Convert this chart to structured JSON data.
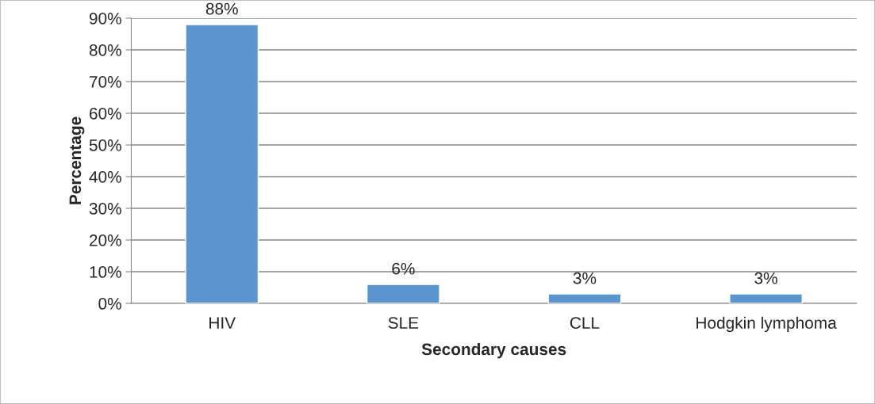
{
  "chart_data": {
    "type": "bar",
    "xlabel": "Secondary causes",
    "ylabel": "Percentage",
    "categories": [
      "HIV",
      "SLE",
      "CLL",
      "Hodgkin lymphoma"
    ],
    "values": [
      88,
      6,
      3,
      3
    ],
    "value_labels": [
      "88%",
      "6%",
      "3%",
      "3%"
    ],
    "color": "#5b95cf",
    "ylim": [
      0,
      90
    ],
    "yticks": [
      {
        "value": 0,
        "label": "0%"
      },
      {
        "value": 10,
        "label": "10%"
      },
      {
        "value": 20,
        "label": "20%"
      },
      {
        "value": 30,
        "label": "30%"
      },
      {
        "value": 40,
        "label": "40%"
      },
      {
        "value": 50,
        "label": "50%"
      },
      {
        "value": 60,
        "label": "60%"
      },
      {
        "value": 70,
        "label": "70%"
      },
      {
        "value": 80,
        "label": "80%"
      },
      {
        "value": 90,
        "label": "90%"
      }
    ],
    "grid": "y",
    "legend": false
  }
}
